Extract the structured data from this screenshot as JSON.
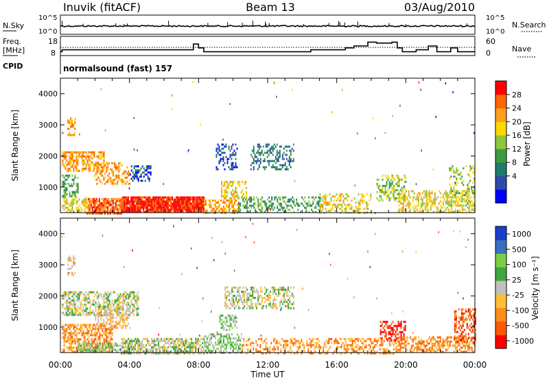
{
  "header": {
    "station": "Inuvik (fitACF)",
    "beam": "Beam 13",
    "date": "03/Aug/2010"
  },
  "side_labels": {
    "nsky": "N.Sky",
    "freq_line1": "Freq.",
    "freq_line2": "[MHz]",
    "cpid": "CPID",
    "nsearch": "N.Search",
    "nave": "Nave"
  },
  "cpid_text": "normalsound (fast) 157",
  "colors": {
    "power": [
      "#0000ff",
      "#2e4aa8",
      "#1f7a6e",
      "#3f9a3f",
      "#8ec63f",
      "#ffd700",
      "#ff9f1a",
      "#ff6600",
      "#ff0000"
    ],
    "velocity": [
      "#ff0000",
      "#ff5a00",
      "#ff8c1a",
      "#ffbf33",
      "#c0c0c0",
      "#3fa63f",
      "#78d048",
      "#3a6fc0",
      "#1a3fd0"
    ]
  },
  "chart_data": [
    {
      "type": "line",
      "panel": "N.Sky / N.Search",
      "x_range": [
        "00:00",
        "24:00"
      ],
      "y_left_ticks": [
        "10^5",
        "10^0"
      ],
      "y_right_ticks": [
        "10^5",
        "10^0"
      ],
      "series": [
        {
          "name": "N.Sky",
          "style": "solid"
        },
        {
          "name": "N.Search",
          "style": "dotted"
        }
      ]
    },
    {
      "type": "line",
      "panel": "Frequency / Nave",
      "x_range": [
        "00:00",
        "24:00"
      ],
      "y_left_ticks": [
        "18",
        "8"
      ],
      "y_right_ticks": [
        "60",
        "0"
      ],
      "series": [
        {
          "name": "Freq.",
          "style": "solid",
          "points": [
            [
              0,
              10
            ],
            [
              0.1,
              10
            ],
            [
              0.1,
              11
            ],
            [
              7.7,
              11
            ],
            [
              7.7,
              14
            ],
            [
              8,
              14
            ],
            [
              8,
              12
            ],
            [
              8.3,
              12
            ],
            [
              8.3,
              10
            ],
            [
              14.5,
              10
            ],
            [
              14.5,
              11
            ],
            [
              16.5,
              11
            ],
            [
              16.5,
              12
            ],
            [
              17,
              12
            ],
            [
              17,
              13
            ],
            [
              17.8,
              13
            ],
            [
              17.8,
              15
            ],
            [
              18.3,
              15
            ],
            [
              18.3,
              14.5
            ],
            [
              19.2,
              14.5
            ],
            [
              19.2,
              15
            ],
            [
              19.5,
              15
            ],
            [
              19.5,
              12
            ],
            [
              19.8,
              12
            ],
            [
              19.8,
              10
            ],
            [
              20.6,
              10
            ],
            [
              20.6,
              11
            ],
            [
              21.3,
              11
            ],
            [
              21.3,
              13
            ],
            [
              21.8,
              13
            ],
            [
              21.8,
              10
            ],
            [
              22.6,
              10
            ],
            [
              22.6,
              12
            ],
            [
              23,
              12
            ],
            [
              23,
              10
            ],
            [
              24,
              10
            ]
          ]
        },
        {
          "name": "Nave",
          "style": "dotted"
        }
      ]
    },
    {
      "type": "heatmap",
      "title": "Power",
      "xlabel": "Time UT",
      "ylabel": "Slant Range [km]",
      "x_ticks": [
        "00:00",
        "04:00",
        "08:00",
        "12:00",
        "16:00",
        "20:00",
        "00:00"
      ],
      "y_ticks": [
        1000,
        2000,
        3000,
        4000
      ],
      "ylim": [
        180,
        4500
      ],
      "colorbar_label": "Power [dB]",
      "colorbar_ticks": [
        "28",
        "24",
        "20",
        "16",
        "12",
        "8",
        "4"
      ],
      "regions": [
        {
          "t0": 3.5,
          "t1": 8.3,
          "r0": 180,
          "r1": 700,
          "level": 8,
          "density": 0.95
        },
        {
          "t0": 1.5,
          "t1": 3.5,
          "r0": 180,
          "r1": 650,
          "level": 7,
          "density": 0.85
        },
        {
          "t0": 0.1,
          "t1": 1.5,
          "r0": 180,
          "r1": 700,
          "level": 5,
          "density": 0.55
        },
        {
          "t0": 0.1,
          "t1": 2.5,
          "r0": 1500,
          "r1": 2150,
          "level": 6,
          "density": 0.6
        },
        {
          "t0": 2.0,
          "t1": 4.0,
          "r0": 1100,
          "r1": 1800,
          "level": 6,
          "density": 0.5
        },
        {
          "t0": 0.1,
          "t1": 1.0,
          "r0": 700,
          "r1": 1400,
          "level": 3,
          "density": 0.45
        },
        {
          "t0": 4.0,
          "t1": 5.2,
          "r0": 1200,
          "r1": 1700,
          "level": 1,
          "density": 0.4
        },
        {
          "t0": 8.3,
          "t1": 10.3,
          "r0": 180,
          "r1": 600,
          "level": 6,
          "density": 0.6
        },
        {
          "t0": 9.0,
          "t1": 10.2,
          "r0": 1600,
          "r1": 2400,
          "level": 1,
          "density": 0.35
        },
        {
          "t0": 9.3,
          "t1": 10.8,
          "r0": 650,
          "r1": 1200,
          "level": 5,
          "density": 0.45
        },
        {
          "t0": 10.3,
          "t1": 15.0,
          "r0": 180,
          "r1": 700,
          "level": 3,
          "density": 0.4
        },
        {
          "t0": 11.0,
          "t1": 13.5,
          "r0": 1600,
          "r1": 2400,
          "level": 2,
          "density": 0.4
        },
        {
          "t0": 15.0,
          "t1": 18.0,
          "r0": 180,
          "r1": 800,
          "level": 5,
          "density": 0.35
        },
        {
          "t0": 18.3,
          "t1": 20.0,
          "r0": 600,
          "r1": 1400,
          "level": 4,
          "density": 0.4
        },
        {
          "t0": 19.5,
          "t1": 24.0,
          "r0": 180,
          "r1": 900,
          "level": 5,
          "density": 0.45
        },
        {
          "t0": 22.5,
          "t1": 24.0,
          "r0": 400,
          "r1": 1700,
          "level": 4,
          "density": 0.35
        },
        {
          "t0": 0.4,
          "t1": 0.8,
          "r0": 2700,
          "r1": 3300,
          "level": 6,
          "density": 0.5
        }
      ]
    },
    {
      "type": "heatmap",
      "title": "Velocity",
      "xlabel": "Time UT",
      "ylabel": "Slant Range [km]",
      "x_ticks": [
        "00:00",
        "04:00",
        "08:00",
        "12:00",
        "16:00",
        "20:00",
        "00:00"
      ],
      "y_ticks": [
        1000,
        2000,
        3000,
        4000
      ],
      "ylim": [
        180,
        4500
      ],
      "colorbar_label": "Velocity [m s⁻¹]",
      "colorbar_ticks": [
        "1000",
        "500",
        "100",
        "25",
        "-25",
        "-100",
        "-500",
        "-1000"
      ],
      "regions": [
        {
          "t0": 0.1,
          "t1": 3.0,
          "r0": 180,
          "r1": 1100,
          "level": 2,
          "density": 0.6
        },
        {
          "t0": 1.0,
          "t1": 3.5,
          "r0": 180,
          "r1": 500,
          "level": 5,
          "density": 0.6
        },
        {
          "t0": 3.5,
          "t1": 8.3,
          "r0": 180,
          "r1": 650,
          "level": 4,
          "density": 0.7
        },
        {
          "t0": 0.1,
          "t1": 4.5,
          "r0": 1400,
          "r1": 2150,
          "level": 4,
          "density": 0.55
        },
        {
          "t0": 2.0,
          "t1": 4.0,
          "r0": 1000,
          "r1": 1600,
          "level": 3,
          "density": 0.45
        },
        {
          "t0": 8.3,
          "t1": 10.5,
          "r0": 180,
          "r1": 800,
          "level": 5,
          "density": 0.55
        },
        {
          "t0": 9.2,
          "t1": 10.2,
          "r0": 900,
          "r1": 1400,
          "level": 5,
          "density": 0.5
        },
        {
          "t0": 9.5,
          "t1": 13.5,
          "r0": 1600,
          "r1": 2300,
          "level": 4,
          "density": 0.5
        },
        {
          "t0": 10.5,
          "t1": 16.0,
          "r0": 180,
          "r1": 650,
          "level": 2,
          "density": 0.4
        },
        {
          "t0": 16.0,
          "t1": 19.5,
          "r0": 180,
          "r1": 650,
          "level": 2,
          "density": 0.45
        },
        {
          "t0": 18.5,
          "t1": 20.0,
          "r0": 600,
          "r1": 1200,
          "level": 0,
          "density": 0.45
        },
        {
          "t0": 19.5,
          "t1": 24.0,
          "r0": 180,
          "r1": 700,
          "level": 2,
          "density": 0.55
        },
        {
          "t0": 22.8,
          "t1": 24.0,
          "r0": 500,
          "r1": 1600,
          "level": 1,
          "density": 0.45
        },
        {
          "t0": 0.4,
          "t1": 0.8,
          "r0": 2700,
          "r1": 3300,
          "level": 3,
          "density": 0.5
        }
      ]
    }
  ]
}
